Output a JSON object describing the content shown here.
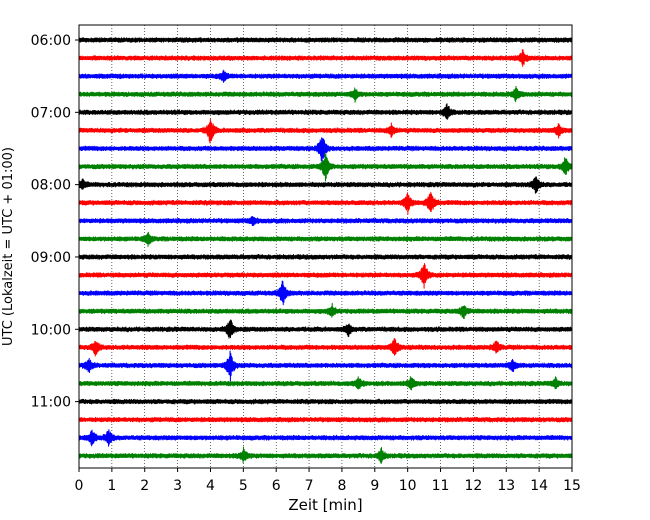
{
  "chart_data": {
    "type": "line",
    "title": "",
    "xlabel": "Zeit  [min]",
    "ylabel": "UTC (Lokalzeit = UTC + 01:00)",
    "xlim": [
      0,
      15
    ],
    "x_ticks": [
      "0",
      "1",
      "2",
      "3",
      "4",
      "5",
      "6",
      "7",
      "8",
      "9",
      "10",
      "11",
      "12",
      "13",
      "14",
      "15"
    ],
    "grid": "vertical dotted",
    "y_ticks": [
      {
        "label": "06:00",
        "row": 0
      },
      {
        "label": "07:00",
        "row": 4
      },
      {
        "label": "08:00",
        "row": 8
      },
      {
        "label": "09:00",
        "row": 12
      },
      {
        "label": "10:00",
        "row": 16
      },
      {
        "label": "11:00",
        "row": 20
      }
    ],
    "colors": [
      "#000000",
      "#ff0000",
      "#0000ff",
      "#008000"
    ],
    "traces": [
      {
        "start": "06:00",
        "color": "#000000",
        "events": []
      },
      {
        "start": "06:15",
        "color": "#ff0000",
        "events": [
          {
            "t": 13.5,
            "amp": 8
          }
        ]
      },
      {
        "start": "06:30",
        "color": "#0000ff",
        "events": [
          {
            "t": 4.4,
            "amp": 5
          }
        ]
      },
      {
        "start": "06:45",
        "color": "#008000",
        "events": [
          {
            "t": 8.4,
            "amp": 6
          },
          {
            "t": 13.3,
            "amp": 7
          }
        ]
      },
      {
        "start": "07:00",
        "color": "#000000",
        "events": [
          {
            "t": 11.2,
            "amp": 8
          }
        ]
      },
      {
        "start": "07:15",
        "color": "#ff0000",
        "events": [
          {
            "t": 4.0,
            "amp": 14
          },
          {
            "t": 9.5,
            "amp": 6
          },
          {
            "t": 14.6,
            "amp": 7
          }
        ]
      },
      {
        "start": "07:30",
        "color": "#0000ff",
        "events": [
          {
            "t": 7.4,
            "amp": 16
          }
        ]
      },
      {
        "start": "07:45",
        "color": "#008000",
        "events": [
          {
            "t": 7.5,
            "amp": 14
          },
          {
            "t": 14.8,
            "amp": 10
          }
        ]
      },
      {
        "start": "08:00",
        "color": "#000000",
        "events": [
          {
            "t": 0.1,
            "amp": 5
          },
          {
            "t": 13.9,
            "amp": 10
          }
        ]
      },
      {
        "start": "08:15",
        "color": "#ff0000",
        "events": [
          {
            "t": 10.0,
            "amp": 10
          },
          {
            "t": 10.7,
            "amp": 14
          }
        ]
      },
      {
        "start": "08:30",
        "color": "#0000ff",
        "events": [
          {
            "t": 5.3,
            "amp": 4
          }
        ]
      },
      {
        "start": "08:45",
        "color": "#008000",
        "events": [
          {
            "t": 2.1,
            "amp": 6
          }
        ]
      },
      {
        "start": "09:00",
        "color": "#000000",
        "events": []
      },
      {
        "start": "09:15",
        "color": "#ff0000",
        "events": [
          {
            "t": 10.5,
            "amp": 14
          }
        ]
      },
      {
        "start": "09:30",
        "color": "#0000ff",
        "events": [
          {
            "t": 6.2,
            "amp": 13
          }
        ]
      },
      {
        "start": "09:45",
        "color": "#008000",
        "events": [
          {
            "t": 7.7,
            "amp": 6
          },
          {
            "t": 11.7,
            "amp": 7
          }
        ]
      },
      {
        "start": "10:00",
        "color": "#000000",
        "events": [
          {
            "t": 4.6,
            "amp": 12
          },
          {
            "t": 8.2,
            "amp": 6
          }
        ]
      },
      {
        "start": "10:15",
        "color": "#ff0000",
        "events": [
          {
            "t": 0.5,
            "amp": 8
          },
          {
            "t": 9.6,
            "amp": 9
          },
          {
            "t": 12.7,
            "amp": 6
          }
        ]
      },
      {
        "start": "10:30",
        "color": "#0000ff",
        "events": [
          {
            "t": 0.3,
            "amp": 7
          },
          {
            "t": 4.6,
            "amp": 16
          },
          {
            "t": 13.2,
            "amp": 6
          }
        ]
      },
      {
        "start": "10:45",
        "color": "#008000",
        "events": [
          {
            "t": 8.5,
            "amp": 6
          },
          {
            "t": 10.1,
            "amp": 7
          },
          {
            "t": 14.5,
            "amp": 5
          }
        ]
      },
      {
        "start": "11:00",
        "color": "#000000",
        "events": []
      },
      {
        "start": "11:15",
        "color": "#ff0000",
        "events": []
      },
      {
        "start": "11:30",
        "color": "#0000ff",
        "events": [
          {
            "t": 0.4,
            "amp": 8
          },
          {
            "t": 0.9,
            "amp": 8
          }
        ]
      },
      {
        "start": "11:45",
        "color": "#008000",
        "events": [
          {
            "t": 5.0,
            "amp": 7
          },
          {
            "t": 9.2,
            "amp": 7
          }
        ]
      }
    ]
  }
}
